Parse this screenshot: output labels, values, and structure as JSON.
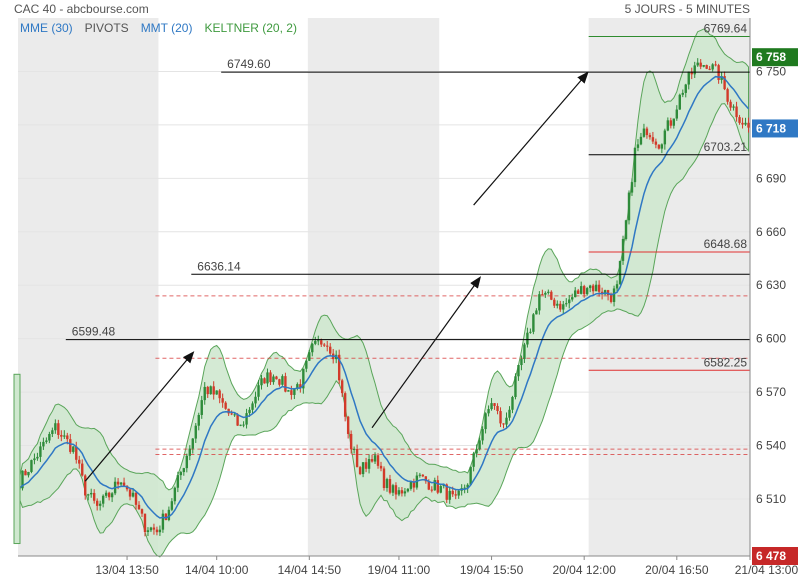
{
  "header": {
    "title": "CAC 40 - abcbourse.com",
    "period": "5 JOURS - 5 MINUTES",
    "indicators": [
      {
        "label": "MME (30)",
        "color": "#2f78c4"
      },
      {
        "label": "PIVOTS",
        "color": "#555555"
      },
      {
        "label": "MMT (20)",
        "color": "#2f78c4"
      },
      {
        "label": "KELTNER (20, 2)",
        "color": "#3f9a3f"
      }
    ]
  },
  "chart_data": {
    "type": "line",
    "title": "CAC 40 - abcbourse.com",
    "subtitle": "5 JOURS - 5 MINUTES",
    "y_ticks": [
      6510,
      6540,
      6570,
      6600,
      6630,
      6660,
      6690,
      6720,
      6750
    ],
    "ylim": [
      6478,
      6780
    ],
    "x_ticks": [
      "13/04 13:50",
      "14/04 10:00",
      "14/04 14:50",
      "19/04 11:00",
      "19/04 15:50",
      "20/04 12:00",
      "20/04 16:50",
      "21/04 13:00"
    ],
    "price_key": [
      [
        0,
        6520
      ],
      [
        6,
        6535
      ],
      [
        12,
        6550
      ],
      [
        18,
        6538
      ],
      [
        22,
        6515
      ],
      [
        26,
        6505
      ],
      [
        30,
        6512
      ],
      [
        34,
        6522
      ],
      [
        38,
        6510
      ],
      [
        42,
        6495
      ],
      [
        46,
        6492
      ],
      [
        50,
        6505
      ],
      [
        54,
        6525
      ],
      [
        58,
        6545
      ],
      [
        62,
        6572
      ],
      [
        66,
        6568
      ],
      [
        70,
        6558
      ],
      [
        74,
        6550
      ],
      [
        78,
        6565
      ],
      [
        82,
        6578
      ],
      [
        86,
        6580
      ],
      [
        90,
        6570
      ],
      [
        94,
        6575
      ],
      [
        98,
        6594
      ],
      [
        102,
        6600
      ],
      [
        106,
        6590
      ],
      [
        110,
        6545
      ],
      [
        114,
        6525
      ],
      [
        118,
        6535
      ],
      [
        122,
        6520
      ],
      [
        126,
        6512
      ],
      [
        130,
        6518
      ],
      [
        134,
        6522
      ],
      [
        138,
        6518
      ],
      [
        142,
        6515
      ],
      [
        146,
        6508
      ],
      [
        150,
        6520
      ],
      [
        154,
        6545
      ],
      [
        158,
        6565
      ],
      [
        162,
        6550
      ],
      [
        166,
        6575
      ],
      [
        170,
        6600
      ],
      [
        174,
        6625
      ],
      [
        178,
        6622
      ],
      [
        182,
        6618
      ],
      [
        186,
        6625
      ],
      [
        190,
        6630
      ],
      [
        194,
        6628
      ],
      [
        198,
        6624
      ],
      [
        200,
        6628
      ],
      [
        203,
        6665
      ],
      [
        206,
        6705
      ],
      [
        210,
        6718
      ],
      [
        214,
        6710
      ],
      [
        218,
        6722
      ],
      [
        222,
        6740
      ],
      [
        226,
        6752
      ],
      [
        230,
        6755
      ],
      [
        234,
        6748
      ],
      [
        238,
        6732
      ],
      [
        242,
        6722
      ],
      [
        244,
        6718
      ]
    ],
    "candles_count": 245,
    "shaded_sessions": [
      [
        0,
        46
      ],
      [
        97,
        140
      ],
      [
        191,
        244
      ]
    ],
    "ema_color": "#2f78c4",
    "keltner_fill": "#cfe8cf",
    "keltner_stroke": "#5aa55a",
    "up_color": "#2e8b3a",
    "down_color": "#d23a2a",
    "pivot_levels": [
      {
        "label": "6769.64",
        "value": 6769.64,
        "color": "#2e8b2e"
      },
      {
        "label": "6749.60",
        "value": 6749.6,
        "color": "#000000"
      },
      {
        "label": "6703.21",
        "value": 6703.21,
        "color": "#000000"
      },
      {
        "label": "6648.68",
        "value": 6648.68,
        "color": "#e03030"
      },
      {
        "label": "6636.14",
        "value": 6636.14,
        "color": "#000000"
      },
      {
        "label": "6599.48",
        "value": 6599.48,
        "color": "#000000"
      },
      {
        "label": "6582.25",
        "value": 6582.25,
        "color": "#e03030"
      }
    ],
    "dashed_levels": [
      6538,
      6535,
      6589,
      6624
    ],
    "price_badges": [
      {
        "label": "6 758",
        "value": 6758,
        "color": "#1f7a1f"
      },
      {
        "label": "6 718",
        "value": 6718,
        "color": "#2f78c4"
      },
      {
        "label": "6 478",
        "value": 6478,
        "color": "#c62828"
      }
    ],
    "arrows": [
      [
        22,
        6520,
        58,
        6592
      ],
      [
        118,
        6550,
        154,
        6634
      ],
      [
        152,
        6675,
        190,
        6749
      ]
    ]
  }
}
